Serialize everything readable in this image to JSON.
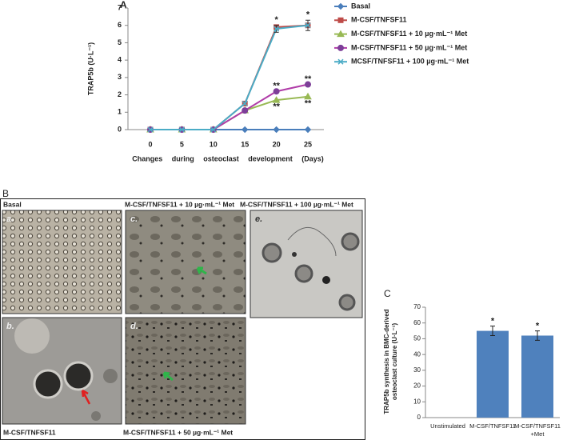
{
  "figure": {
    "panel_labels": [
      "A",
      "B",
      "C"
    ],
    "micrographs": {
      "header": [
        "Basal",
        "M-CSF/TNFSF11 + 10 µg·mL⁻¹ Met",
        "M-CSF/TNFSF11 + 100 µg·mL⁻¹ Met"
      ],
      "footer": [
        "M-CSF/TNFSF11",
        "M-CSF/TNFSF11 + 50 µg·mL⁻¹ Met"
      ],
      "image_labels": [
        "a.",
        "b.",
        "c.",
        "d.",
        "e."
      ]
    }
  },
  "chart_data": [
    {
      "type": "line",
      "xlabel": "Changes during osteoclast development (Days)",
      "ylabel": "TRAP5b (U·L⁻¹)",
      "categories": [
        "0",
        "5",
        "10",
        "15",
        "20",
        "25"
      ],
      "ylim": [
        0,
        7
      ],
      "yticks": [
        0,
        1,
        2,
        3,
        4,
        5,
        6,
        7
      ],
      "legend": "right",
      "series": [
        {
          "name": "Basal",
          "color": "#4a7ebb",
          "marker": "diamond",
          "values": [
            0,
            0,
            0,
            0,
            0,
            0
          ]
        },
        {
          "name": "M-CSF/TNFSF11",
          "color": "#be4b48",
          "marker": "square",
          "values": [
            0,
            0,
            0,
            1.5,
            5.9,
            6.0
          ]
        },
        {
          "name": "M-CSF/TNFSF11 + 10 µg·mL⁻¹ Met",
          "color": "#98b954",
          "marker": "triangle",
          "values": [
            0,
            0,
            0,
            1.1,
            1.7,
            1.9
          ]
        },
        {
          "name": "M-CSF/TNFSF11 + 50 µg·mL⁻¹ Met",
          "color": "#b03ca8",
          "marker": "circle",
          "values": [
            0,
            0,
            0,
            1.1,
            2.2,
            2.6
          ]
        },
        {
          "name": "MCSF/TNFSF11 + 100 µg·mL⁻¹ Met",
          "color": "#4bacc6",
          "marker": "x",
          "values": [
            0,
            0,
            0,
            1.5,
            5.8,
            6.0
          ],
          "errors": [
            null,
            null,
            null,
            null,
            0.2,
            0.3
          ]
        }
      ],
      "annotations": [
        {
          "text": "*",
          "category": "20",
          "y": 6.3
        },
        {
          "text": "*",
          "category": "25",
          "y": 6.6
        },
        {
          "text": "**",
          "category": "20",
          "y": 2.5
        },
        {
          "text": "**",
          "category": "20",
          "y": 1.3
        },
        {
          "text": "**",
          "category": "25",
          "y": 2.9
        },
        {
          "text": "**",
          "category": "25",
          "y": 1.5
        }
      ]
    },
    {
      "type": "bar",
      "ylabel": "TRAP5b synthesis in BMC-derived osteoclast culture (U·L⁻¹)",
      "categories": [
        "Unstimulated",
        "M-CSF/TNFSF11",
        "M-CSF/TNFSF11 +Met"
      ],
      "values": [
        0,
        55,
        52
      ],
      "errors": [
        0,
        3,
        3
      ],
      "color": "#4f81bd",
      "ylim": [
        0,
        70
      ],
      "yticks": [
        0,
        10,
        20,
        30,
        40,
        50,
        60,
        70
      ],
      "annotations": [
        {
          "text": "*",
          "category": "M-CSF/TNFSF11",
          "y": 61
        },
        {
          "text": "*",
          "category": "M-CSF/TNFSF11 +Met",
          "y": 58
        }
      ]
    }
  ]
}
